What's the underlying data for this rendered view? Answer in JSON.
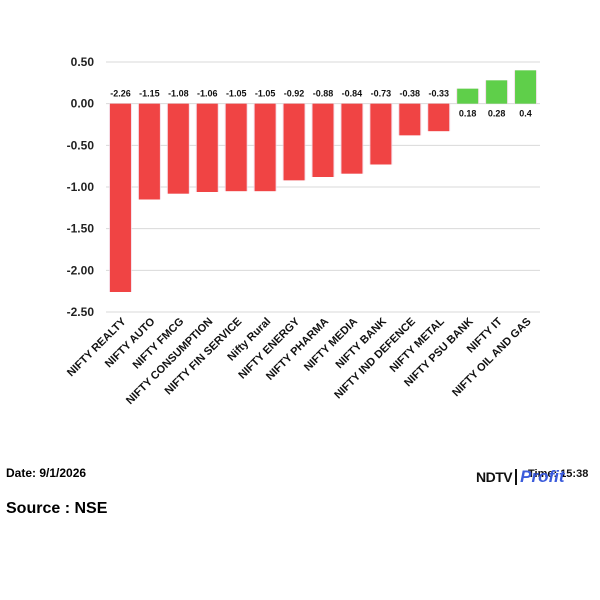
{
  "chart_data": {
    "type": "bar",
    "categories": [
      "NIFTY REALTY",
      "NIFTY AUTO",
      "NIFTY FMCG",
      "NIFTY CONSUMPTION",
      "NIFTY FIN SERVICE",
      "Nifty Rural",
      "NIFTY ENERGY",
      "NIFTY PHARMA",
      "NIFTY MEDIA",
      "NIFTY BANK",
      "NIFTY IND DEFENCE",
      "NIFTY METAL",
      "NIFTY PSU BANK",
      "NIFTY IT",
      "NIFTY OIL AND GAS"
    ],
    "values": [
      -2.26,
      -1.15,
      -1.08,
      -1.06,
      -1.05,
      -1.05,
      -0.92,
      -0.88,
      -0.84,
      -0.73,
      -0.38,
      -0.33,
      0.18,
      0.28,
      0.4
    ],
    "data_labels": [
      "-2.26",
      "-1.15",
      "-1.08",
      "-1.06",
      "-1.05",
      "-1.05",
      "-0.92",
      "-0.88",
      "-0.84",
      "-0.73",
      "-0.38",
      "-0.33",
      "0.18",
      "0.28",
      "0.4"
    ],
    "yticks": [
      "0.50",
      "0.00",
      "-0.50",
      "-1.00",
      "-1.50",
      "-2.00",
      "-2.50"
    ],
    "ylim": [
      -2.5,
      0.5
    ],
    "grid": true,
    "colors": {
      "negative": "#f04444",
      "positive": "#5fcf4a"
    }
  },
  "footer": {
    "date": "Date: 9/1/2026",
    "source": "Source : NSE",
    "time": "Time: 15:38",
    "brand_ndtv": "NDTV",
    "brand_profit": "Profit"
  }
}
